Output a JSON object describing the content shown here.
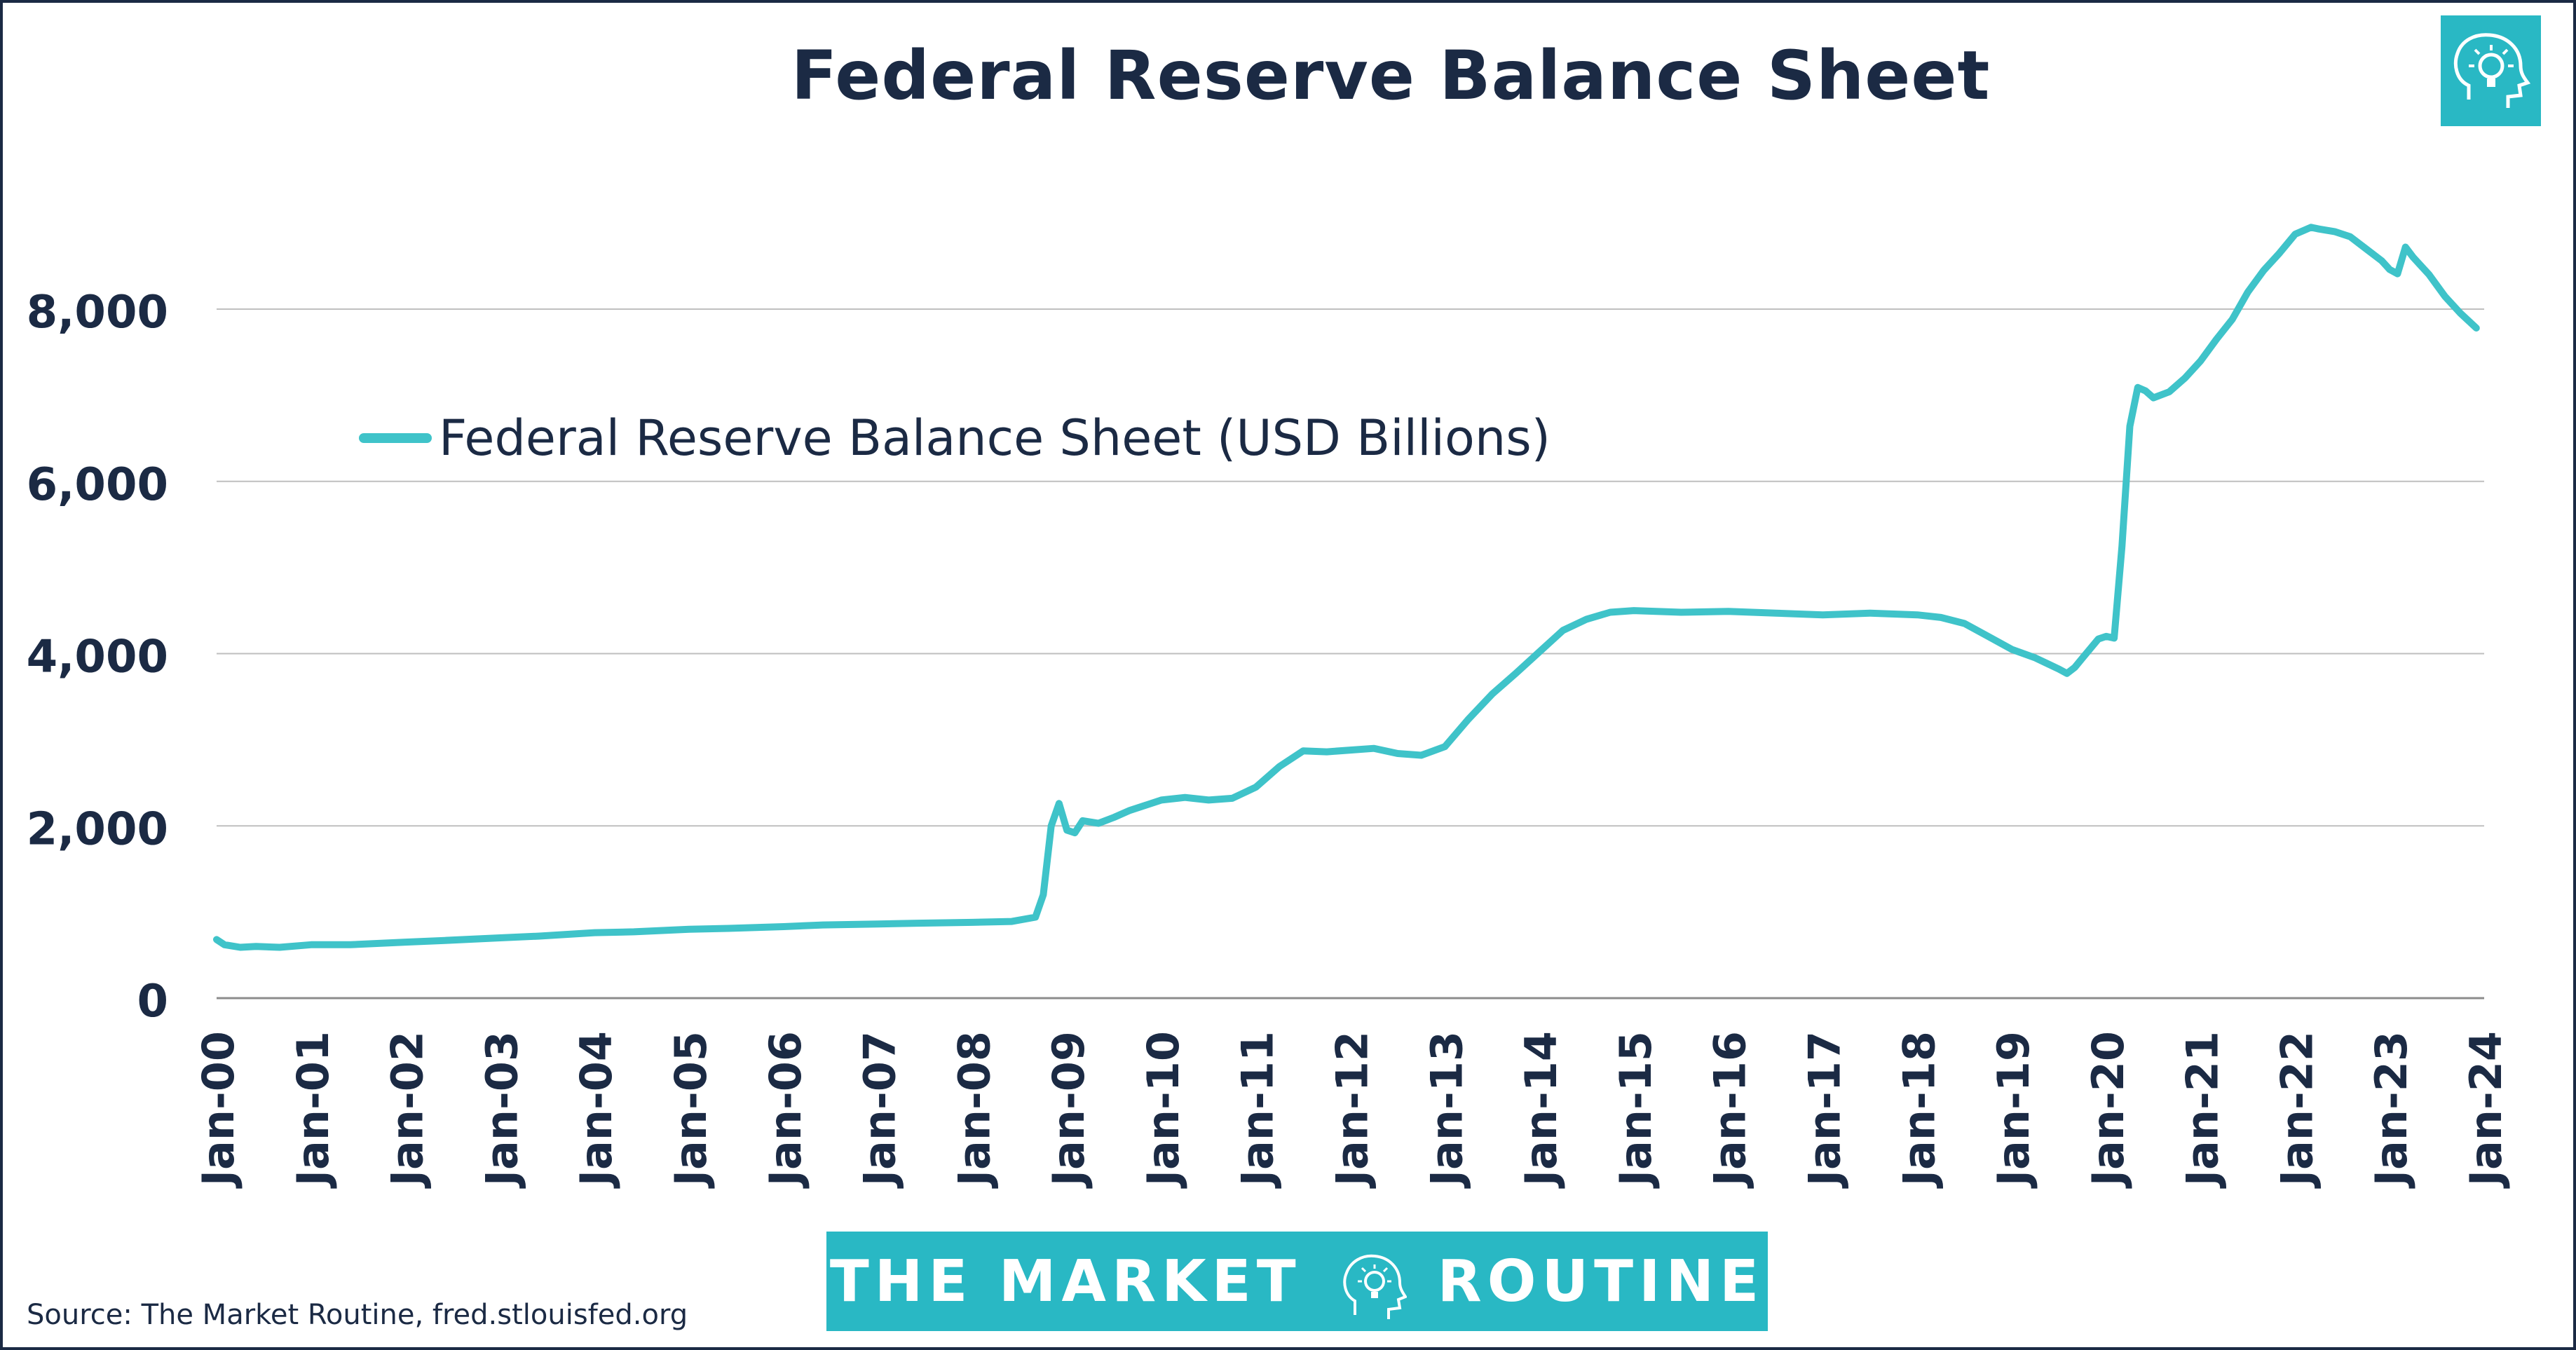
{
  "title": "Federal Reserve Balance Sheet",
  "source": "Source: The Market Routine, fred.stlouisfed.org",
  "brand": {
    "word1": "THE MARKET",
    "word2": "ROUTINE",
    "icon": "head-lightbulb-icon"
  },
  "colors": {
    "line": "#3fc3c9",
    "text": "#1b2a44",
    "brand": "#29b8c4",
    "grid": "#bfbfbf"
  },
  "chart_data": {
    "type": "line",
    "title": "Federal Reserve Balance Sheet",
    "xlabel": "",
    "ylabel": "",
    "ylim": [
      0,
      9200
    ],
    "yticks": [
      0,
      2000,
      4000,
      6000,
      8000
    ],
    "ytick_labels": [
      "0",
      "2,000",
      "4,000",
      "6,000",
      "8,000"
    ],
    "xticks": [
      "2000-01",
      "2001-01",
      "2002-01",
      "2003-01",
      "2004-01",
      "2005-01",
      "2006-01",
      "2007-01",
      "2008-01",
      "2009-01",
      "2010-01",
      "2011-01",
      "2012-01",
      "2013-01",
      "2014-01",
      "2015-01",
      "2016-01",
      "2017-01",
      "2018-01",
      "2019-01",
      "2020-01",
      "2021-01",
      "2022-01",
      "2023-01",
      "2024-01"
    ],
    "xtick_labels": [
      "Jan-00",
      "Jan-01",
      "Jan-02",
      "Jan-03",
      "Jan-04",
      "Jan-05",
      "Jan-06",
      "Jan-07",
      "Jan-08",
      "Jan-09",
      "Jan-10",
      "Jan-11",
      "Jan-12",
      "Jan-13",
      "Jan-14",
      "Jan-15",
      "Jan-16",
      "Jan-17",
      "Jan-18",
      "Jan-19",
      "Jan-20",
      "Jan-21",
      "Jan-22",
      "Jan-23",
      "Jan-24"
    ],
    "grid": true,
    "legend_position": "upper-left",
    "series": [
      {
        "name": "Federal Reserve Balance Sheet (USD Billions)",
        "color": "#3fc3c9",
        "x": [
          "2000-01",
          "2000-02",
          "2000-04",
          "2000-06",
          "2000-09",
          "2001-01",
          "2001-06",
          "2002-01",
          "2002-06",
          "2003-01",
          "2003-06",
          "2004-01",
          "2004-06",
          "2005-01",
          "2005-06",
          "2006-01",
          "2006-06",
          "2007-01",
          "2007-06",
          "2008-01",
          "2008-06",
          "2008-09",
          "2008-10",
          "2008-11",
          "2008-12",
          "2009-01",
          "2009-02",
          "2009-03",
          "2009-05",
          "2009-07",
          "2009-09",
          "2009-11",
          "2010-01",
          "2010-04",
          "2010-07",
          "2010-10",
          "2011-01",
          "2011-04",
          "2011-07",
          "2011-10",
          "2012-01",
          "2012-04",
          "2012-07",
          "2012-10",
          "2013-01",
          "2013-04",
          "2013-07",
          "2013-10",
          "2014-01",
          "2014-04",
          "2014-07",
          "2014-10",
          "2015-01",
          "2015-07",
          "2016-01",
          "2016-07",
          "2017-01",
          "2017-07",
          "2018-01",
          "2018-04",
          "2018-07",
          "2018-10",
          "2019-01",
          "2019-04",
          "2019-07",
          "2019-08",
          "2019-09",
          "2019-10",
          "2019-12",
          "2020-01",
          "2020-02",
          "2020-03",
          "2020-04",
          "2020-05",
          "2020-06",
          "2020-07",
          "2020-09",
          "2020-11",
          "2021-01",
          "2021-03",
          "2021-05",
          "2021-07",
          "2021-09",
          "2021-11",
          "2022-01",
          "2022-03",
          "2022-04",
          "2022-06",
          "2022-08",
          "2022-10",
          "2022-12",
          "2023-01",
          "2023-02",
          "2023-03",
          "2023-04",
          "2023-06",
          "2023-08",
          "2023-10",
          "2023-12"
        ],
        "values": [
          680,
          620,
          590,
          600,
          590,
          620,
          620,
          650,
          670,
          700,
          720,
          760,
          770,
          800,
          810,
          830,
          850,
          860,
          870,
          880,
          890,
          940,
          1200,
          2000,
          2260,
          1950,
          1920,
          2060,
          2030,
          2100,
          2180,
          2240,
          2300,
          2330,
          2300,
          2320,
          2450,
          2690,
          2870,
          2860,
          2880,
          2900,
          2840,
          2820,
          2920,
          3240,
          3530,
          3770,
          4020,
          4270,
          4400,
          4480,
          4500,
          4480,
          4490,
          4470,
          4450,
          4470,
          4450,
          4420,
          4350,
          4200,
          4050,
          3950,
          3820,
          3770,
          3840,
          3950,
          4170,
          4200,
          4180,
          5250,
          6640,
          7090,
          7050,
          6970,
          7040,
          7200,
          7400,
          7650,
          7880,
          8200,
          8450,
          8650,
          8870,
          8950,
          8930,
          8900,
          8840,
          8700,
          8560,
          8460,
          8410,
          8720,
          8600,
          8400,
          8150,
          7950,
          7780
        ]
      }
    ]
  }
}
